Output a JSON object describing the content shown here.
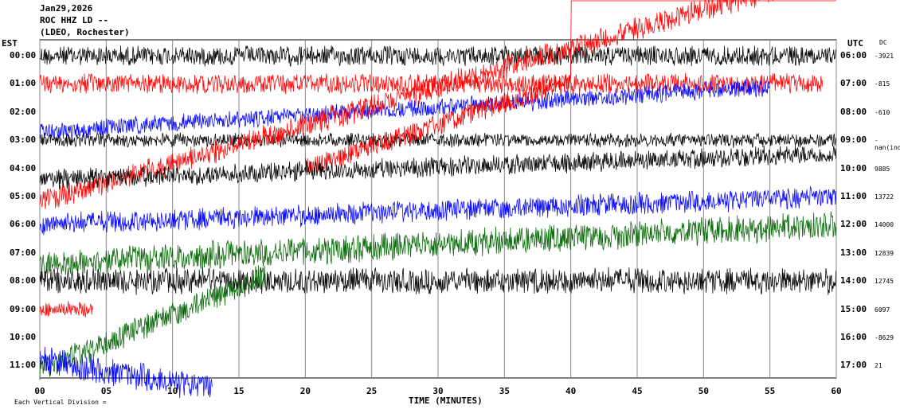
{
  "header": {
    "date": "Jan29,2026",
    "station": "ROC HHZ LD --",
    "network": "(LDEO, Rochester)"
  },
  "left_axis_title": "EST",
  "right_axis_title": "UTC",
  "dc_title": "DC",
  "footer_note": "Each Vertical Division = ",
  "chart_data": {
    "type": "line",
    "title": "ROC HHZ LD --",
    "xlabel": "TIME (MINUTES)",
    "x_ticks": [
      "00",
      "05",
      "10",
      "15",
      "20",
      "25",
      "30",
      "35",
      "40",
      "45",
      "50",
      "55",
      "60"
    ],
    "xlim": [
      0,
      60
    ],
    "grid": true,
    "colors": [
      "#000000",
      "#ff0000",
      "#0000ff",
      "#006400"
    ],
    "traces": [
      {
        "est": "00:00",
        "utc": "06:00",
        "dc": "-3921",
        "color": "#000000",
        "start": 0,
        "end": 60,
        "amp": 1.0,
        "drift": [
          0,
          0
        ],
        "extra": false
      },
      {
        "est": "01:00",
        "utc": "07:00",
        "dc": "-815",
        "color": "#ff0000",
        "start": 0,
        "end": 59,
        "amp": 1.0,
        "drift": [
          0,
          0
        ],
        "extra": false
      },
      {
        "est": "02:00",
        "utc": "08:00",
        "dc": "-610",
        "color": "#0000ff",
        "start": 0,
        "end": 55,
        "amp": 0.9,
        "drift": [
          0.7,
          -0.9
        ],
        "extra": false
      },
      {
        "est": "03:00",
        "utc": "09:00",
        "dc": "-nan(ind",
        "color": "#000000",
        "start": 0,
        "end": 60,
        "amp": 0.7,
        "drift": [
          0,
          0
        ],
        "extra": false
      },
      {
        "est": "04:00",
        "utc": "10:00",
        "dc": "9885",
        "color": "#ff0000",
        "start": 0,
        "end": 60,
        "amp": 1.2,
        "drift": [
          1.2,
          -7.0
        ],
        "extra": true
      },
      {
        "est": "05:00",
        "utc": "11:00",
        "dc": "13722",
        "color": "#0000ff",
        "start": 0,
        "end": 60,
        "amp": 1.1,
        "drift": [
          1.0,
          0
        ],
        "extra": false
      },
      {
        "est": "06:00",
        "utc": "12:00",
        "dc": "14000",
        "color": "#000000",
        "start": 0,
        "end": 60,
        "amp": 1.0,
        "drift": [
          -1.6,
          -2.5
        ],
        "extra": false
      },
      {
        "est": "07:00",
        "utc": "13:00",
        "dc": "12839",
        "color": "#006400",
        "start": 0,
        "end": 60,
        "amp": 1.4,
        "drift": [
          0.4,
          -1.0
        ],
        "extra": false
      },
      {
        "est": "08:00",
        "utc": "14:00",
        "dc": "12745",
        "color": "#000000",
        "start": 0,
        "end": 60,
        "amp": 1.3,
        "drift": [
          0,
          0
        ],
        "extra": false
      },
      {
        "est": "09:00",
        "utc": "15:00",
        "dc": "6097",
        "color": "#ff0000",
        "start": 0,
        "end": 4,
        "amp": 0.8,
        "drift": [
          0,
          0
        ],
        "extra": false
      },
      {
        "est": "10:00",
        "utc": "16:00",
        "dc": "-8629",
        "color": "#006400",
        "start": 0,
        "end": 17,
        "amp": 1.3,
        "drift": [
          1.2,
          -2.2
        ],
        "extra": false
      },
      {
        "est": "11:00",
        "utc": "17:00",
        "dc": "21",
        "color": "#0000ff",
        "start": 0,
        "end": 13,
        "amp": 1.4,
        "drift": [
          -0.2,
          0.8
        ],
        "extra": false
      }
    ]
  }
}
